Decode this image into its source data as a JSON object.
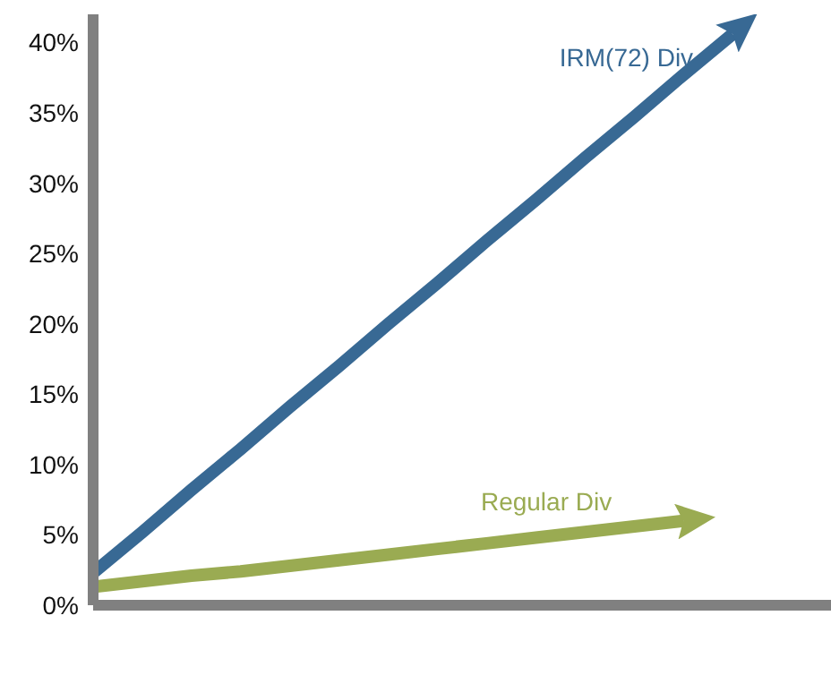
{
  "chart_data": {
    "type": "line",
    "categories": [
      null,
      null,
      null,
      null,
      null,
      null,
      null,
      null,
      null,
      null,
      null,
      null,
      null,
      null,
      null,
      null
    ],
    "series": [
      {
        "name": "IRM(72) Div",
        "color": "#386994",
        "values": [
          2.3,
          5.2,
          8.2,
          11.1,
          14.1,
          17,
          20,
          22.9,
          25.9,
          28.8,
          31.8,
          34.7,
          37.7,
          40.6,
          null,
          null
        ]
      },
      {
        "name": "Regular Div",
        "color": "#9aab52",
        "values": [
          1.3,
          1.7,
          2.1,
          2.4,
          2.8,
          3.2,
          3.6,
          4,
          4.4,
          4.8,
          5.2,
          5.6,
          6,
          null,
          null,
          null
        ]
      }
    ],
    "ylim": [
      0,
      42
    ],
    "yticks": [
      {
        "value": 0,
        "label": "0%"
      },
      {
        "value": 5,
        "label": "5%"
      },
      {
        "value": 10,
        "label": "10%"
      },
      {
        "value": 15,
        "label": "15%"
      },
      {
        "value": 20,
        "label": "20%"
      },
      {
        "value": 25,
        "label": "25%"
      },
      {
        "value": 30,
        "label": "30%"
      },
      {
        "value": 35,
        "label": "35%"
      },
      {
        "value": 40,
        "label": "40%"
      }
    ],
    "grid": false,
    "legend": false,
    "marker": "none",
    "line_style": "solid"
  }
}
